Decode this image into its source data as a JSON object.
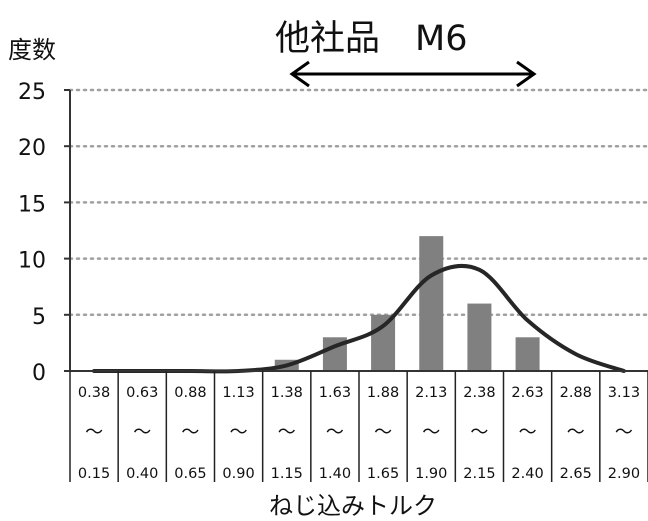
{
  "chart_data": {
    "type": "bar",
    "title": "他社品　M6",
    "ylabel": "度数",
    "xlabel": "ねじ込みトルク",
    "ylim": [
      0,
      25
    ],
    "yticks": [
      0,
      5,
      10,
      15,
      20,
      25
    ],
    "grid": true,
    "category_top": [
      "0.38",
      "0.63",
      "0.88",
      "1.13",
      "1.38",
      "1.63",
      "1.88",
      "2.13",
      "2.38",
      "2.63",
      "2.88",
      "3.13"
    ],
    "category_mid": "～",
    "category_bottom": [
      "0.15",
      "0.40",
      "0.65",
      "0.90",
      "1.15",
      "1.40",
      "1.65",
      "1.90",
      "2.15",
      "2.40",
      "2.65",
      "2.90"
    ],
    "values": [
      0,
      0,
      0,
      0,
      1,
      3,
      5,
      12,
      6,
      3,
      0,
      0
    ],
    "curve": [
      0,
      0,
      0,
      0,
      0.5,
      2.2,
      4,
      8.5,
      9,
      4.5,
      1.5,
      0
    ],
    "colors": {
      "bar": "#808080",
      "curve": "#262626",
      "grid": "#a0a0a0",
      "axis": "#333333"
    }
  }
}
